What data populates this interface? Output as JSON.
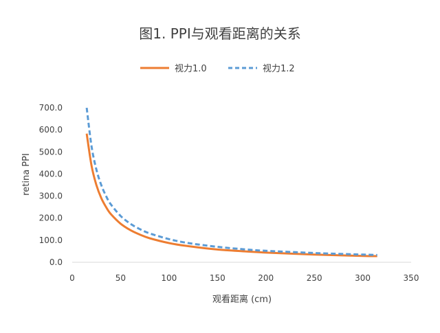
{
  "chart_data": {
    "type": "line",
    "title": "图1. PPI与观看距离的关系",
    "xlabel": "观看距离 (cm)",
    "ylabel": "retina PPI",
    "xlim": [
      0,
      350
    ],
    "ylim": [
      0,
      700
    ],
    "x_ticks": [
      "0",
      "50",
      "100",
      "150",
      "200",
      "250",
      "300",
      "350"
    ],
    "y_ticks": [
      "0.0",
      "100.0",
      "200.0",
      "300.0",
      "400.0",
      "500.0",
      "600.0",
      "700.0"
    ],
    "legend_position": "top",
    "grid": false,
    "series": [
      {
        "name": "视力1.0",
        "color": "#ED7D31",
        "style": "solid",
        "x": [
          15,
          20,
          25,
          30,
          35,
          40,
          50,
          60,
          70,
          80,
          100,
          120,
          150,
          180,
          200,
          250,
          300,
          315
        ],
        "y": [
          583,
          437,
          350,
          291,
          250,
          218,
          175,
          146,
          125,
          109,
          87,
          73,
          58,
          49,
          44,
          35,
          29,
          28
        ]
      },
      {
        "name": "视力1.2",
        "color": "#5B9BD5",
        "style": "dashed",
        "x": [
          15,
          20,
          25,
          30,
          35,
          40,
          50,
          60,
          70,
          80,
          100,
          120,
          150,
          180,
          200,
          250,
          300,
          315
        ],
        "y": [
          700,
          525,
          420,
          350,
          300,
          262,
          210,
          175,
          150,
          131,
          105,
          87,
          70,
          58,
          52,
          42,
          35,
          33
        ]
      }
    ]
  }
}
